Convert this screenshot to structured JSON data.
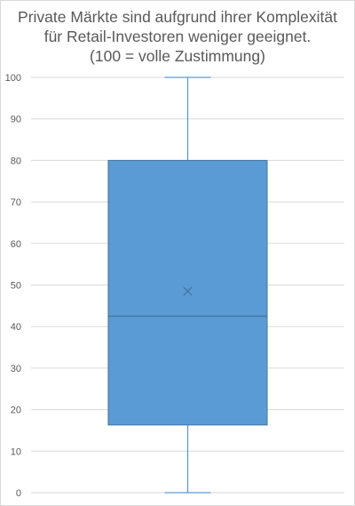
{
  "chart_data": {
    "type": "boxplot",
    "title_lines": [
      "Private Märkte sind aufgrund ihrer Komplexität",
      "für Retail-Investoren weniger geeignet.",
      "(100 = volle Zustimmung)"
    ],
    "ylim": [
      0,
      100
    ],
    "yticks": [
      0,
      10,
      20,
      30,
      40,
      50,
      60,
      70,
      80,
      90,
      100
    ],
    "grid": true,
    "box": {
      "min": 0,
      "q1": 16.3,
      "median": 42.5,
      "mean": 48.5,
      "q3": 80,
      "max": 100
    },
    "colors": {
      "box_fill": "#5b9bd5",
      "box_stroke": "#41719c",
      "whisker": "#5b9bd5",
      "grid": "#d9d9d9"
    }
  }
}
